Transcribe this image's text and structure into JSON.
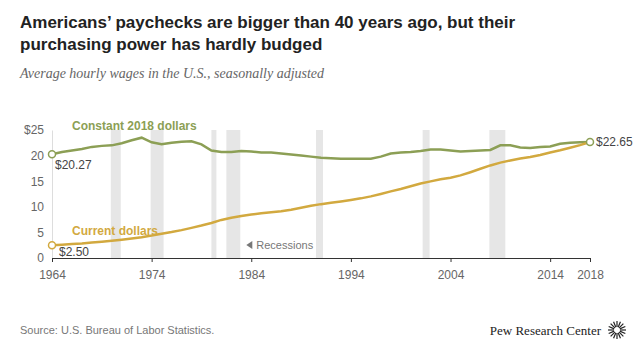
{
  "chart_data": {
    "type": "line",
    "title": "Americans’ paychecks are bigger than 40 years ago, but their purchasing power has hardly budged",
    "subtitle": "Average hourly wages in the U.S., seasonally adjusted",
    "x": [
      1964,
      1965,
      1966,
      1967,
      1968,
      1969,
      1970,
      1971,
      1972,
      1973,
      1974,
      1975,
      1976,
      1977,
      1978,
      1979,
      1980,
      1981,
      1982,
      1983,
      1984,
      1985,
      1986,
      1987,
      1988,
      1989,
      1990,
      1991,
      1992,
      1993,
      1994,
      1995,
      1996,
      1997,
      1998,
      1999,
      2000,
      2001,
      2002,
      2003,
      2004,
      2005,
      2006,
      2007,
      2008,
      2009,
      2010,
      2011,
      2012,
      2013,
      2014,
      2015,
      2016,
      2017,
      2018
    ],
    "series": [
      {
        "name": "Constant 2018 dollars",
        "color": "#8c9f55",
        "values": [
          20.27,
          20.7,
          21.0,
          21.3,
          21.7,
          21.9,
          22.0,
          22.4,
          23.0,
          23.5,
          22.6,
          22.2,
          22.5,
          22.7,
          22.8,
          22.2,
          21.0,
          20.7,
          20.7,
          20.9,
          20.8,
          20.6,
          20.6,
          20.4,
          20.2,
          20.0,
          19.8,
          19.6,
          19.5,
          19.4,
          19.4,
          19.4,
          19.4,
          19.8,
          20.4,
          20.6,
          20.7,
          20.9,
          21.2,
          21.2,
          21.0,
          20.8,
          20.9,
          21.0,
          21.1,
          22.0,
          22.0,
          21.6,
          21.5,
          21.7,
          21.8,
          22.3,
          22.5,
          22.6,
          22.65
        ]
      },
      {
        "name": "Current dollars",
        "color": "#d2a93f",
        "values": [
          2.5,
          2.61,
          2.72,
          2.83,
          3.01,
          3.19,
          3.36,
          3.57,
          3.81,
          4.07,
          4.38,
          4.74,
          5.06,
          5.44,
          5.88,
          6.34,
          6.85,
          7.44,
          7.87,
          8.2,
          8.49,
          8.74,
          8.93,
          9.14,
          9.44,
          9.8,
          10.2,
          10.52,
          10.77,
          11.05,
          11.34,
          11.65,
          12.04,
          12.51,
          13.01,
          13.49,
          14.02,
          14.54,
          14.97,
          15.37,
          15.69,
          16.13,
          16.76,
          17.43,
          18.08,
          18.63,
          19.05,
          19.44,
          19.74,
          20.13,
          20.61,
          21.03,
          21.53,
          22.05,
          22.65
        ]
      }
    ],
    "xlim": [
      1964,
      2018
    ],
    "xticks": [
      1964,
      1974,
      1984,
      1994,
      2004,
      2014,
      2018
    ],
    "ylim": [
      0,
      25
    ],
    "yticks": [
      0,
      5,
      10,
      15,
      20,
      {
        "value": 25,
        "label": "$25"
      }
    ],
    "grid": false,
    "annotations": [
      {
        "text": "$20.27",
        "x": 1964,
        "y": 20.27
      },
      {
        "text": "$2.50",
        "x": 1964,
        "y": 2.5
      },
      {
        "text": "$22.65",
        "x": 2018,
        "y": 22.65
      }
    ],
    "recessions": {
      "label": "Recessions",
      "periods": [
        [
          1969.9,
          1970.9
        ],
        [
          1973.9,
          1975.2
        ],
        [
          1980.0,
          1980.5
        ],
        [
          1981.5,
          1982.9
        ],
        [
          1990.5,
          1991.2
        ],
        [
          2001.2,
          2001.9
        ],
        [
          2007.9,
          2009.5
        ]
      ]
    },
    "source": "Source: U.S. Bureau of Labor Statistics.",
    "credit": "Pew Research Center"
  }
}
